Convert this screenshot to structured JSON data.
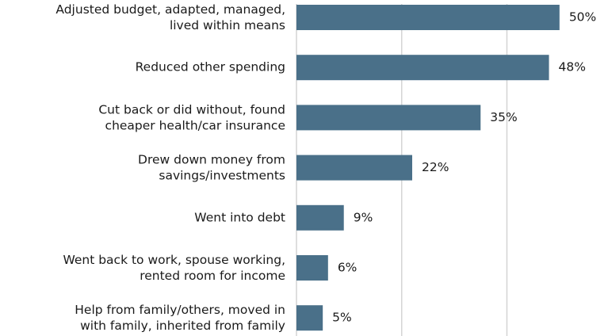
{
  "chart_data": {
    "type": "bar",
    "orientation": "horizontal",
    "categories": [
      "Adjusted budget, adapted, managed,\nlived within means",
      "Reduced other spending",
      "Cut back or did without, found\ncheaper health/car insurance",
      "Drew down money from\nsavings/investments",
      "Went into debt",
      "Went back to work, spouse working,\nrented room for income",
      "Help from family/others, moved in\nwith family, inherited from family"
    ],
    "values": [
      50,
      48,
      35,
      22,
      9,
      6,
      5
    ],
    "value_labels": [
      "50%",
      "48%",
      "35%",
      "22%",
      "9%",
      "6%",
      "5%"
    ],
    "color": "#4a7089",
    "xlim": [
      0,
      55
    ],
    "xticks": [
      0,
      20,
      40
    ],
    "grid": true
  }
}
